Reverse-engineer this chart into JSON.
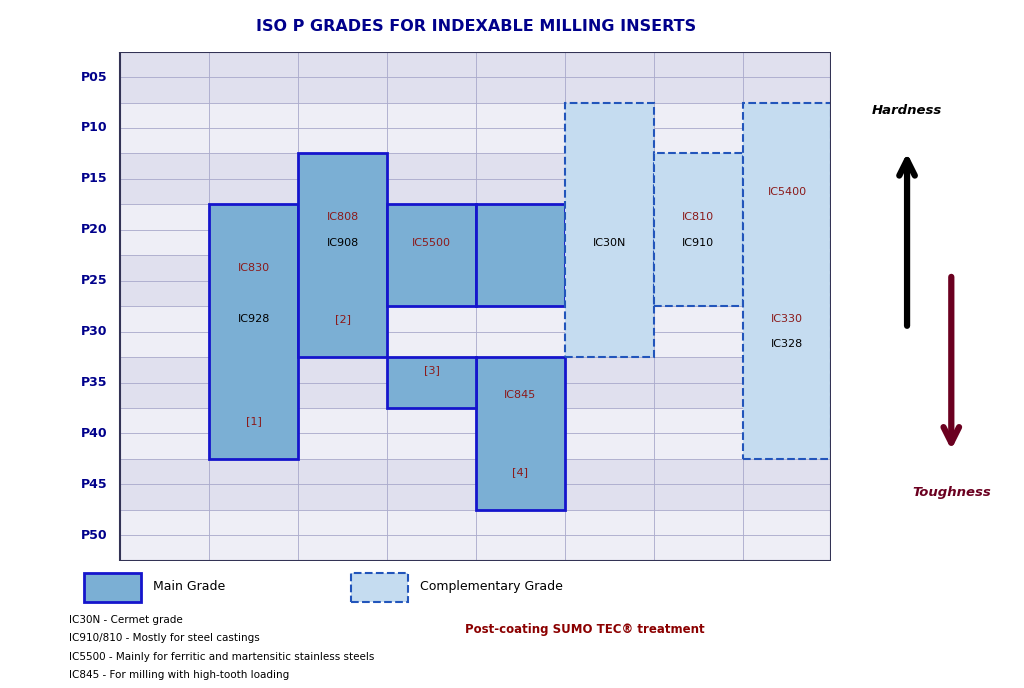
{
  "title": "ISO P GRADES FOR INDEXABLE MILLING INSERTS",
  "title_color": "#00008B",
  "row_labels": [
    "P05",
    "P10",
    "P15",
    "P20",
    "P25",
    "P30",
    "P35",
    "P40",
    "P45",
    "P50"
  ],
  "num_data_cols": 8,
  "num_rows": 20,
  "main_fill": "#7BAFD4",
  "main_border": "#1515CC",
  "comp_fill": "#C5DCF0",
  "comp_border": "#2255BB",
  "row_label_color": "#00008B",
  "grade_color_red": "#8B1A1A",
  "grade_color_black": "#000000",
  "hardness_color": "#000000",
  "toughness_color": "#6B0020",
  "footer_notes": [
    "IC30N - Cermet grade",
    "IC910/810 - Mostly for steel castings",
    "IC5500 - Mainly for ferritic and martensitic stainless steels",
    "IC845 - For milling with high-tooth loading"
  ],
  "footer_red_text": "Post-coating SUMO TEC® treatment"
}
